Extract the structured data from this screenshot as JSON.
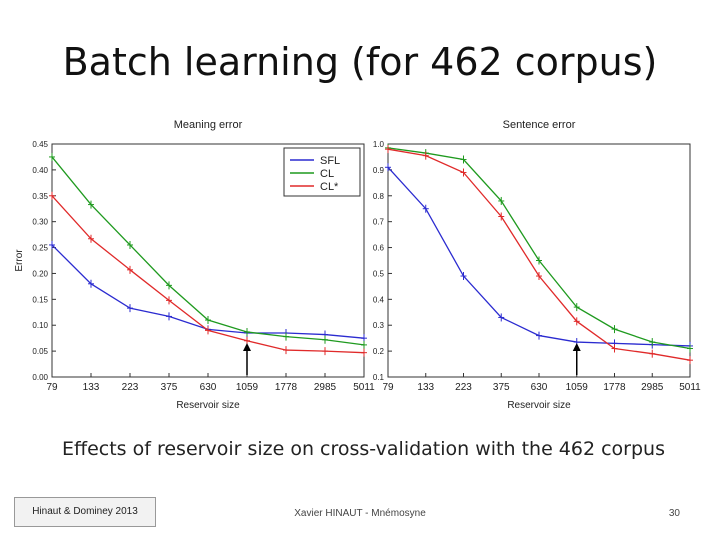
{
  "slide": {
    "title": "Batch learning (for 462 corpus)",
    "caption": "Effects of reservoir size on cross-validation with the 462 corpus",
    "footer_ref": "Hinaut & Dominey 2013",
    "footer_author": "Xavier HINAUT - Mnémosyne",
    "page_number": "30"
  },
  "chart_data": [
    {
      "type": "line",
      "title": "Meaning error",
      "xlabel": "Reservoir size",
      "ylabel": "Error",
      "categories": [
        "79",
        "133",
        "223",
        "375",
        "630",
        "1059",
        "1778",
        "2985",
        "5011"
      ],
      "yticks": [
        "0.00",
        "0.05",
        "0.10",
        "0.15",
        "0.20",
        "0.25",
        "0.30",
        "0.35",
        "0.40",
        "0.45"
      ],
      "ylim": [
        0,
        0.45
      ],
      "legend": {
        "placement": "top-right",
        "entries": [
          "SFL",
          "CL",
          "CL*"
        ]
      },
      "grid": false,
      "series": [
        {
          "name": "SFL",
          "color": "#2b2bd0",
          "values": [
            0.255,
            0.18,
            0.133,
            0.117,
            0.092,
            0.085,
            0.085,
            0.082,
            0.075
          ]
        },
        {
          "name": "CL",
          "color": "#1f9a1f",
          "values": [
            0.425,
            0.333,
            0.255,
            0.177,
            0.11,
            0.087,
            0.078,
            0.072,
            0.062
          ]
        },
        {
          "name": "CL*",
          "color": "#e02a2a",
          "values": [
            0.35,
            0.267,
            0.207,
            0.148,
            0.09,
            0.07,
            0.052,
            0.05,
            0.047
          ]
        }
      ]
    },
    {
      "type": "line",
      "title": "Sentence error",
      "xlabel": "Reservoir size",
      "ylabel": "",
      "categories": [
        "79",
        "133",
        "223",
        "375",
        "630",
        "1059",
        "1778",
        "2985",
        "5011"
      ],
      "yticks": [
        "0.1",
        "0.2",
        "0.3",
        "0.4",
        "0.5",
        "0.6",
        "0.7",
        "0.8",
        "0.9",
        "1.0"
      ],
      "ylim": [
        0.1,
        1.0
      ],
      "grid": false,
      "series": [
        {
          "name": "SFL",
          "color": "#2b2bd0",
          "values": [
            0.91,
            0.75,
            0.49,
            0.33,
            0.26,
            0.235,
            0.23,
            0.225,
            0.22
          ]
        },
        {
          "name": "CL",
          "color": "#1f9a1f",
          "values": [
            0.985,
            0.965,
            0.94,
            0.78,
            0.55,
            0.37,
            0.285,
            0.235,
            0.21
          ]
        },
        {
          "name": "CL*",
          "color": "#e02a2a",
          "values": [
            0.98,
            0.955,
            0.89,
            0.72,
            0.49,
            0.315,
            0.21,
            0.19,
            0.165
          ]
        }
      ]
    }
  ]
}
